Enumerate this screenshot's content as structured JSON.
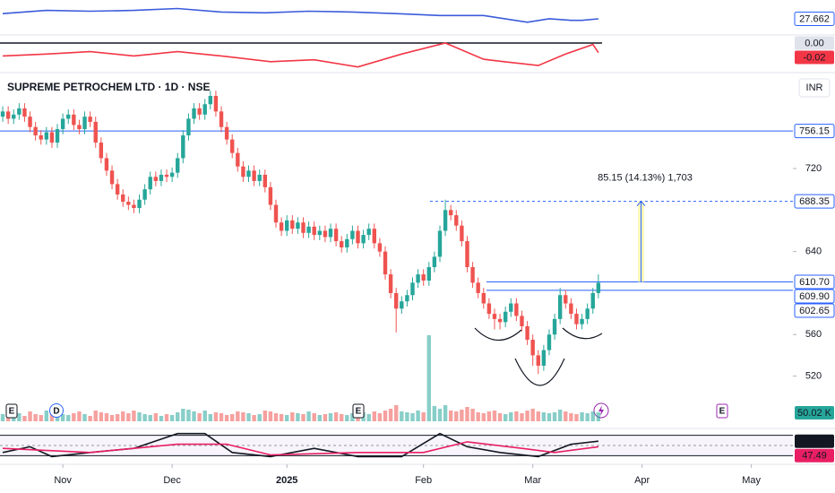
{
  "chart_data": {
    "type": "candlestick",
    "title": "SUPREME PETROCHEM LTD · 1D · NSE",
    "currency": "INR",
    "xlim": [
      -0.5,
      144.6
    ],
    "ylim": [
      469.5,
      809
    ],
    "yticks": [
      520,
      560,
      640,
      720
    ],
    "time_ticks": [
      {
        "value": 11,
        "label": "Nov"
      },
      {
        "value": 31,
        "label": "Dec"
      },
      {
        "value": 52,
        "label": "2025"
      },
      {
        "value": 77,
        "label": "Feb"
      },
      {
        "value": 97,
        "label": "Mar"
      },
      {
        "value": 117,
        "label": "Apr"
      },
      {
        "value": 137,
        "label": "May"
      }
    ],
    "up_color": "#26a69a",
    "down_color": "#ef5350",
    "candles": {
      "open": [
        770,
        775,
        768,
        772,
        778,
        770,
        760,
        752,
        748,
        755,
        745,
        758,
        768,
        772,
        762,
        758,
        770,
        765,
        745,
        730,
        718,
        705,
        695,
        688,
        685,
        682,
        690,
        700,
        712,
        708,
        714,
        712,
        716,
        730,
        752,
        768,
        778,
        772,
        782,
        790,
        775,
        760,
        748,
        735,
        722,
        712,
        718,
        708,
        714,
        702,
        685,
        668,
        660,
        670,
        662,
        668,
        658,
        664,
        656,
        660,
        654,
        662,
        650,
        644,
        652,
        660,
        648,
        656,
        662,
        648,
        640,
        618,
        600,
        585,
        592,
        598,
        610,
        618,
        612,
        625,
        635,
        660,
        680,
        675,
        665,
        650,
        625,
        610,
        600,
        590,
        580,
        575,
        572,
        582,
        590,
        578,
        568,
        555,
        540,
        530,
        545,
        560,
        575,
        598,
        590,
        580,
        570,
        575,
        585,
        600
      ],
      "high": [
        780,
        780,
        777,
        783,
        783,
        775,
        765,
        757,
        760,
        760,
        763,
        773,
        777,
        777,
        767,
        775,
        775,
        770,
        750,
        735,
        723,
        710,
        700,
        693,
        690,
        695,
        705,
        717,
        717,
        719,
        719,
        721,
        735,
        757,
        773,
        783,
        783,
        787,
        795,
        795,
        780,
        765,
        753,
        740,
        727,
        723,
        723,
        719,
        719,
        707,
        690,
        673,
        675,
        675,
        673,
        673,
        669,
        669,
        665,
        665,
        667,
        667,
        655,
        657,
        665,
        665,
        661,
        667,
        667,
        653,
        645,
        623,
        605,
        597,
        603,
        615,
        623,
        623,
        630,
        640,
        665,
        690,
        685,
        680,
        670,
        655,
        630,
        615,
        605,
        595,
        585,
        580,
        587,
        595,
        595,
        583,
        573,
        560,
        545,
        550,
        565,
        580,
        605,
        603,
        595,
        585,
        580,
        590,
        605,
        618
      ],
      "low": [
        765,
        763,
        763,
        767,
        765,
        755,
        747,
        743,
        743,
        740,
        740,
        753,
        763,
        757,
        753,
        753,
        760,
        740,
        725,
        713,
        700,
        690,
        683,
        680,
        677,
        677,
        685,
        695,
        703,
        703,
        707,
        707,
        711,
        725,
        747,
        763,
        767,
        767,
        777,
        770,
        755,
        743,
        730,
        717,
        707,
        707,
        703,
        703,
        697,
        680,
        663,
        655,
        655,
        657,
        657,
        653,
        653,
        651,
        651,
        649,
        649,
        645,
        639,
        639,
        647,
        643,
        643,
        651,
        643,
        635,
        613,
        595,
        562,
        580,
        587,
        593,
        605,
        607,
        607,
        620,
        630,
        655,
        670,
        660,
        645,
        620,
        605,
        595,
        585,
        575,
        565,
        565,
        567,
        577,
        573,
        563,
        550,
        530,
        522,
        525,
        540,
        555,
        570,
        585,
        575,
        565,
        565,
        570,
        580,
        595
      ],
      "close": [
        775,
        768,
        772,
        778,
        770,
        760,
        752,
        748,
        755,
        745,
        758,
        768,
        772,
        762,
        758,
        770,
        765,
        745,
        730,
        718,
        705,
        695,
        688,
        685,
        682,
        690,
        700,
        712,
        708,
        714,
        712,
        716,
        730,
        752,
        768,
        778,
        772,
        782,
        790,
        775,
        760,
        748,
        735,
        722,
        712,
        718,
        708,
        714,
        702,
        685,
        668,
        660,
        670,
        662,
        668,
        658,
        664,
        656,
        660,
        654,
        662,
        650,
        644,
        652,
        660,
        648,
        656,
        662,
        648,
        640,
        618,
        600,
        585,
        592,
        598,
        610,
        618,
        612,
        625,
        635,
        660,
        680,
        675,
        665,
        650,
        625,
        610,
        600,
        590,
        580,
        575,
        572,
        582,
        590,
        578,
        568,
        555,
        540,
        530,
        545,
        560,
        575,
        598,
        590,
        580,
        570,
        575,
        585,
        600,
        609.9
      ]
    },
    "last_price_label": "609.90",
    "price_lines": [
      {
        "value": 756.15,
        "label": "756.15"
      },
      {
        "value": 688.35,
        "label": "688.35"
      },
      {
        "value": 610.7,
        "label": "610.70"
      },
      {
        "value": 602.65,
        "label": "602.65"
      }
    ],
    "line_color": "#2962ff",
    "measure_label": "85.15 (14.13%) 1,703",
    "volume": {
      "ylim": [
        0,
        500
      ],
      "last_label": "50.02 K",
      "values": [
        40,
        35,
        50,
        45,
        30,
        55,
        40,
        35,
        60,
        45,
        50,
        40,
        35,
        45,
        55,
        40,
        30,
        60,
        50,
        45,
        35,
        40,
        55,
        45,
        60,
        50,
        40,
        35,
        45,
        30,
        40,
        35,
        50,
        70,
        65,
        55,
        45,
        60,
        40,
        50,
        45,
        35,
        40,
        55,
        50,
        45,
        35,
        40,
        60,
        55,
        45,
        40,
        35,
        50,
        45,
        40,
        55,
        45,
        35,
        40,
        45,
        50,
        40,
        35,
        45,
        60,
        50,
        40,
        55,
        45,
        60,
        70,
        90,
        55,
        50,
        45,
        60,
        50,
        480,
        85,
        70,
        90,
        60,
        55,
        65,
        80,
        70,
        50,
        45,
        55,
        60,
        45,
        40,
        50,
        55,
        45,
        60,
        70,
        55,
        50,
        45,
        50,
        65,
        55,
        45,
        40,
        50,
        45,
        55,
        50.02
      ]
    },
    "indicators": [
      {
        "ylim": [
          22,
          34
        ],
        "series": [
          {
            "color": "#3b5bdb",
            "x": [
              0,
              8,
              16,
              24,
              32,
              40,
              48,
              56,
              64,
              72,
              80,
              88,
              96,
              100,
              104,
              106,
              109
            ],
            "values": [
              29.6,
              30.8,
              30.5,
              30.8,
              31.5,
              30.2,
              29.9,
              30.5,
              30.2,
              29.6,
              28.9,
              28.9,
              26.4,
              27.7,
              27.1,
              27.1,
              27.662
            ]
          }
        ]
      },
      {
        "ylim": [
          -0.06,
          0.015
        ],
        "hline": {
          "value": 0,
          "label": "0.00"
        },
        "series": [
          {
            "color": "#f23645",
            "x": [
              0,
              8,
              16,
              24,
              32,
              40,
              49,
              57,
              65,
              73,
              81,
              88,
              91,
              98,
              103,
              108,
              109
            ],
            "values": [
              -0.027,
              -0.023,
              -0.018,
              -0.027,
              -0.018,
              -0.027,
              -0.039,
              -0.035,
              -0.05,
              -0.023,
              0,
              -0.034,
              -0.038,
              -0.047,
              -0.023,
              -0.003,
              -0.02
            ]
          }
        ]
      },
      {
        "ylim": [
          20,
          80
        ],
        "levels": [
          70,
          50,
          30
        ],
        "series": [
          {
            "color": "#131722",
            "x": [
              0,
              5,
              9,
              16,
              24,
              32,
              37,
              42,
              49,
              57,
              65,
              73,
              80,
              85,
              91,
              98,
              104,
              109
            ],
            "values": [
              36.2,
              47.6,
              28.1,
              36.2,
              44.3,
              73.5,
              73.5,
              36.2,
              28.1,
              44.3,
              28.1,
              28.1,
              73.5,
              47.6,
              36.2,
              28.1,
              52.4,
              58.47
            ]
          },
          {
            "color": "#e91e63",
            "x": [
              0,
              16,
              32,
              41,
              49,
              65,
              77,
              85,
              95,
              101,
              109
            ],
            "values": [
              44.3,
              36.2,
              52.4,
              52.4,
              31.4,
              36.2,
              36.2,
              57.3,
              44.3,
              36.2,
              47.49
            ]
          }
        ]
      }
    ],
    "events": [
      "E",
      "D",
      "E",
      "E"
    ]
  }
}
